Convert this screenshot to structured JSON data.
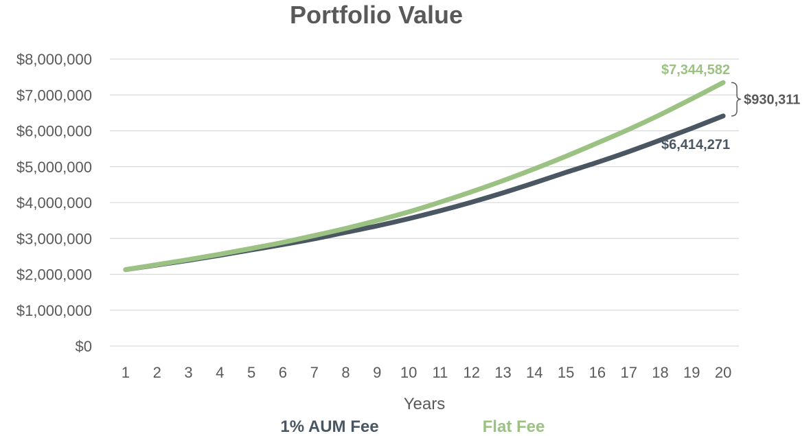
{
  "chart_data": {
    "type": "line",
    "title": "Portfolio Value",
    "xlabel": "Years",
    "ylabel": "",
    "x": [
      1,
      2,
      3,
      4,
      5,
      6,
      7,
      8,
      9,
      10,
      11,
      12,
      13,
      14,
      15,
      16,
      17,
      18,
      19,
      20
    ],
    "ylim": [
      0,
      8000000
    ],
    "y_ticks": [
      {
        "value": 0,
        "label": "$0"
      },
      {
        "value": 1000000,
        "label": "$1,000,000"
      },
      {
        "value": 2000000,
        "label": "$2,000,000"
      },
      {
        "value": 3000000,
        "label": "$3,000,000"
      },
      {
        "value": 4000000,
        "label": "$4,000,000"
      },
      {
        "value": 5000000,
        "label": "$5,000,000"
      },
      {
        "value": 6000000,
        "label": "$6,000,000"
      },
      {
        "value": 7000000,
        "label": "$7,000,000"
      },
      {
        "value": 8000000,
        "label": "$8,000,000"
      }
    ],
    "grid": true,
    "legend_position": "bottom",
    "series": [
      {
        "name": "1% AUM Fee",
        "color": "#4a5763",
        "values": [
          2130000,
          2260000,
          2390000,
          2530000,
          2680000,
          2830000,
          2990000,
          3170000,
          3350000,
          3550000,
          3770000,
          4010000,
          4270000,
          4550000,
          4840000,
          5120000,
          5420000,
          5740000,
          6070000,
          6414271
        ]
      },
      {
        "name": "Flat Fee",
        "color": "#9bc283",
        "values": [
          2130000,
          2270000,
          2410000,
          2560000,
          2720000,
          2890000,
          3080000,
          3280000,
          3500000,
          3740000,
          4010000,
          4300000,
          4610000,
          4940000,
          5290000,
          5660000,
          6040000,
          6450000,
          6890000,
          7344582
        ]
      }
    ],
    "annotations": [
      {
        "text": "$7,344,582",
        "series": "Flat Fee",
        "color": "#9bc283"
      },
      {
        "text": "$6,414,271",
        "series": "1% AUM Fee",
        "color": "#4a5763"
      },
      {
        "text": "$930,311",
        "type": "difference-brace",
        "color": "#595959"
      }
    ]
  }
}
